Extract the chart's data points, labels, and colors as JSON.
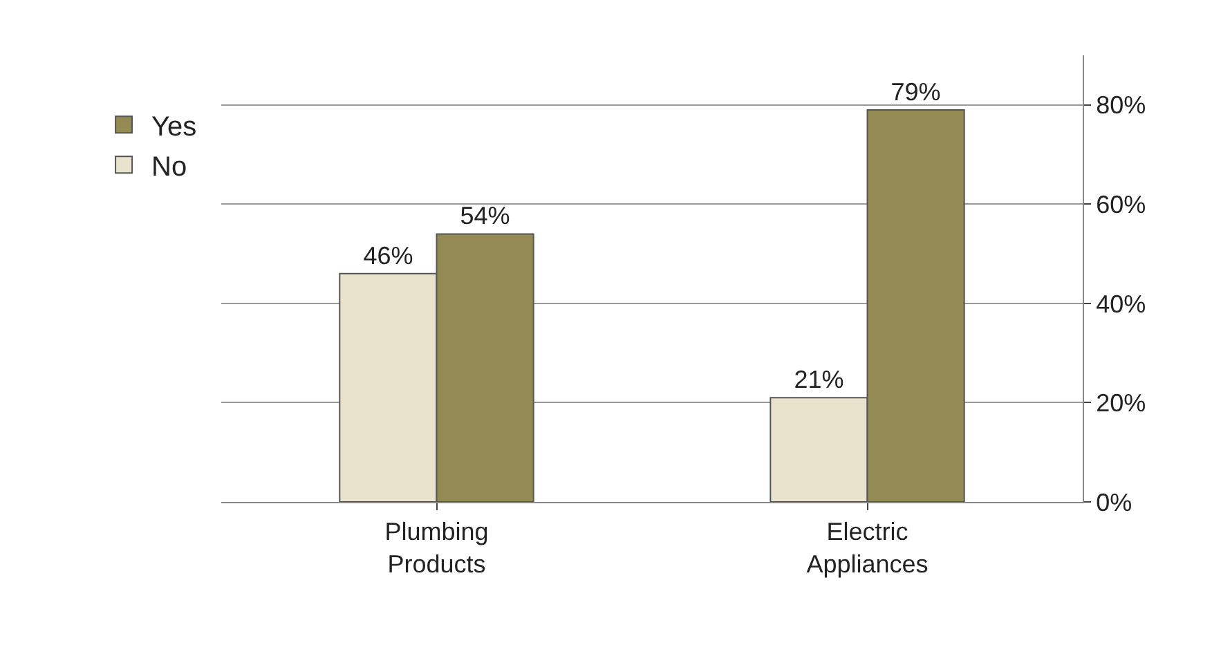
{
  "chart_data": {
    "type": "bar",
    "categories": [
      "Plumbing Products",
      "Electric Appliances"
    ],
    "series": [
      {
        "name": "No",
        "color": "#e8e3cc",
        "values": [
          46,
          21
        ],
        "value_labels": [
          "46%",
          "21%"
        ]
      },
      {
        "name": "Yes",
        "color": "#948a54",
        "values": [
          54,
          79
        ],
        "value_labels": [
          "54%",
          "79%"
        ]
      }
    ],
    "ylim": [
      0,
      90
    ],
    "yticks": [
      {
        "value": 0,
        "label": "0%"
      },
      {
        "value": 20,
        "label": "20%"
      },
      {
        "value": 40,
        "label": "40%"
      },
      {
        "value": 60,
        "label": "60%"
      },
      {
        "value": 80,
        "label": "80%"
      }
    ],
    "grid": "y",
    "legend": "left"
  }
}
